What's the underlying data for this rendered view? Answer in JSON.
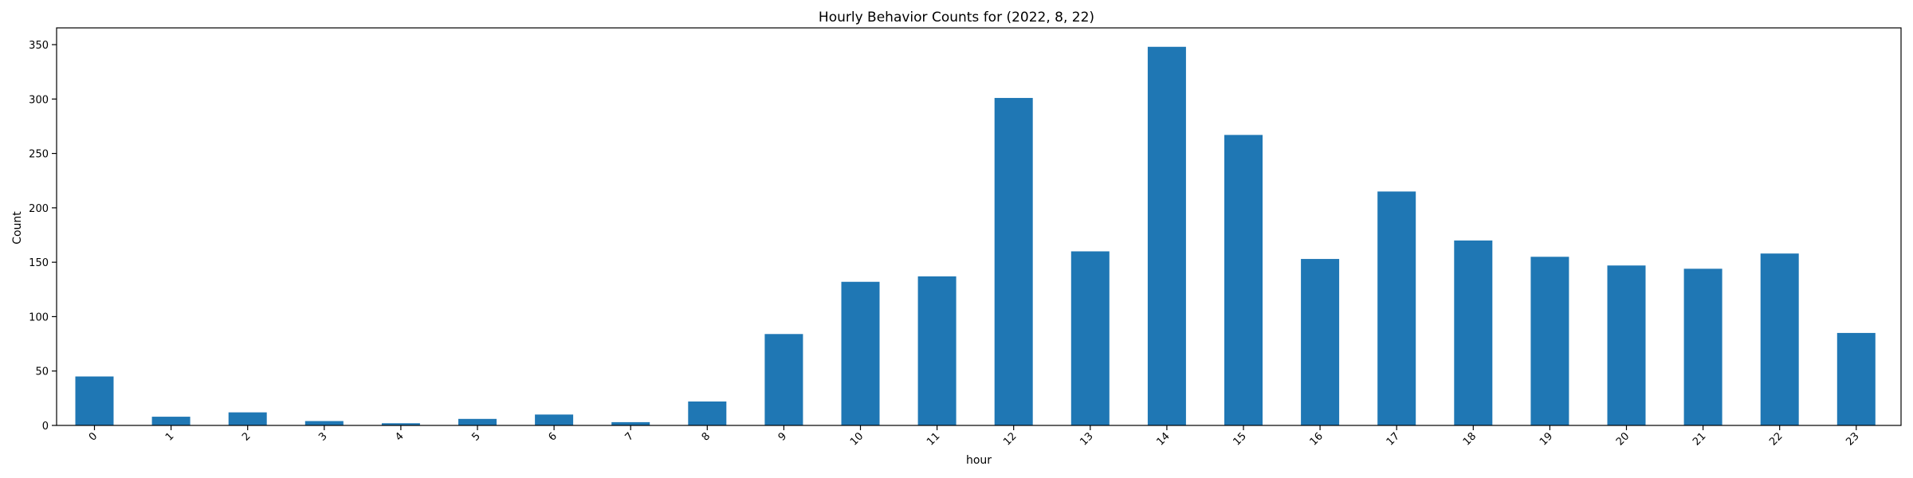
{
  "chart_data": {
    "type": "bar",
    "title": "Hourly Behavior Counts for (2022, 8, 22)",
    "xlabel": "hour",
    "ylabel": "Count",
    "categories": [
      "0",
      "1",
      "2",
      "3",
      "4",
      "5",
      "6",
      "7",
      "8",
      "9",
      "10",
      "11",
      "12",
      "13",
      "14",
      "15",
      "16",
      "17",
      "18",
      "19",
      "20",
      "21",
      "22",
      "23"
    ],
    "values": [
      45,
      8,
      12,
      4,
      2,
      6,
      10,
      3,
      22,
      84,
      132,
      137,
      301,
      160,
      348,
      267,
      153,
      215,
      170,
      155,
      147,
      144,
      158,
      85
    ],
    "ylim": [
      0,
      365.4
    ],
    "yticks": [
      0,
      50,
      100,
      150,
      200,
      250,
      300,
      350
    ],
    "bar_color": "#1f77b4",
    "grid": false,
    "legend": "none"
  }
}
